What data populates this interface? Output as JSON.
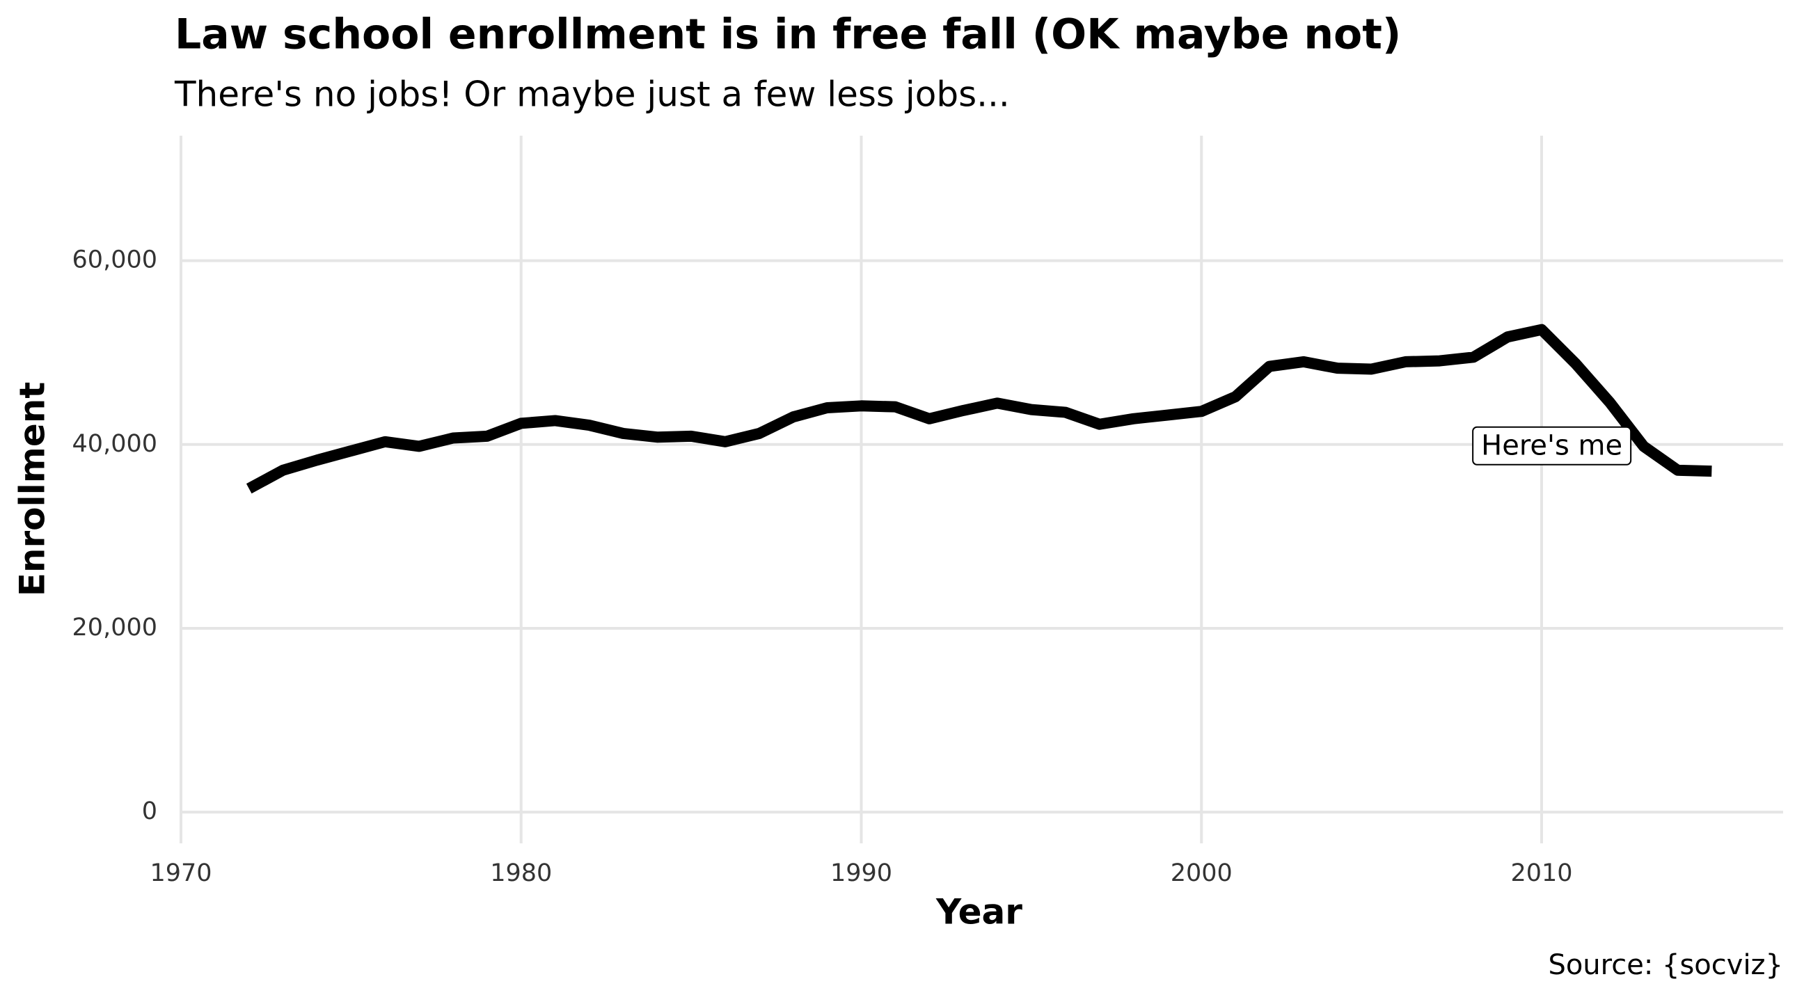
{
  "chart_data": {
    "type": "line",
    "title": "Law school enrollment is in free fall (OK maybe not)",
    "subtitle": "There's no jobs! Or maybe just a few less jobs...",
    "x_label": "Year",
    "y_label": "Enrollment",
    "caption": "Source: {socviz}",
    "x": [
      1972,
      1973,
      1974,
      1975,
      1976,
      1977,
      1978,
      1979,
      1980,
      1981,
      1982,
      1983,
      1984,
      1985,
      1986,
      1987,
      1988,
      1989,
      1990,
      1991,
      1992,
      1993,
      1994,
      1995,
      1996,
      1997,
      1998,
      1999,
      2000,
      2001,
      2002,
      2003,
      2004,
      2005,
      2006,
      2007,
      2008,
      2009,
      2010,
      2011,
      2012,
      2013,
      2014,
      2015
    ],
    "values": [
      35200,
      37200,
      38300,
      39300,
      40300,
      39800,
      40700,
      40900,
      42300,
      42600,
      42100,
      41200,
      40800,
      40900,
      40300,
      41200,
      43000,
      44000,
      44200,
      44100,
      42800,
      43700,
      44500,
      43800,
      43500,
      42200,
      42800,
      43200,
      43600,
      45200,
      48500,
      49000,
      48300,
      48200,
      49000,
      49100,
      49500,
      51700,
      52500,
      48800,
      44600,
      39800,
      37200,
      37100
    ],
    "color": "#000000",
    "xlim": [
      1970,
      2017.1
    ],
    "xticks": [
      1970,
      1980,
      1990,
      2000,
      2010
    ],
    "ylim": [
      -3400,
      73600
    ],
    "yticks": [
      0,
      {
        "value": 20000,
        "label": "20,000"
      },
      {
        "value": 40000,
        "label": "40,000"
      },
      {
        "value": 60000,
        "label": "60,000"
      }
    ],
    "grid": true,
    "annotation": {
      "text": "Here's me",
      "x": 2010.3,
      "y": 39700
    }
  }
}
